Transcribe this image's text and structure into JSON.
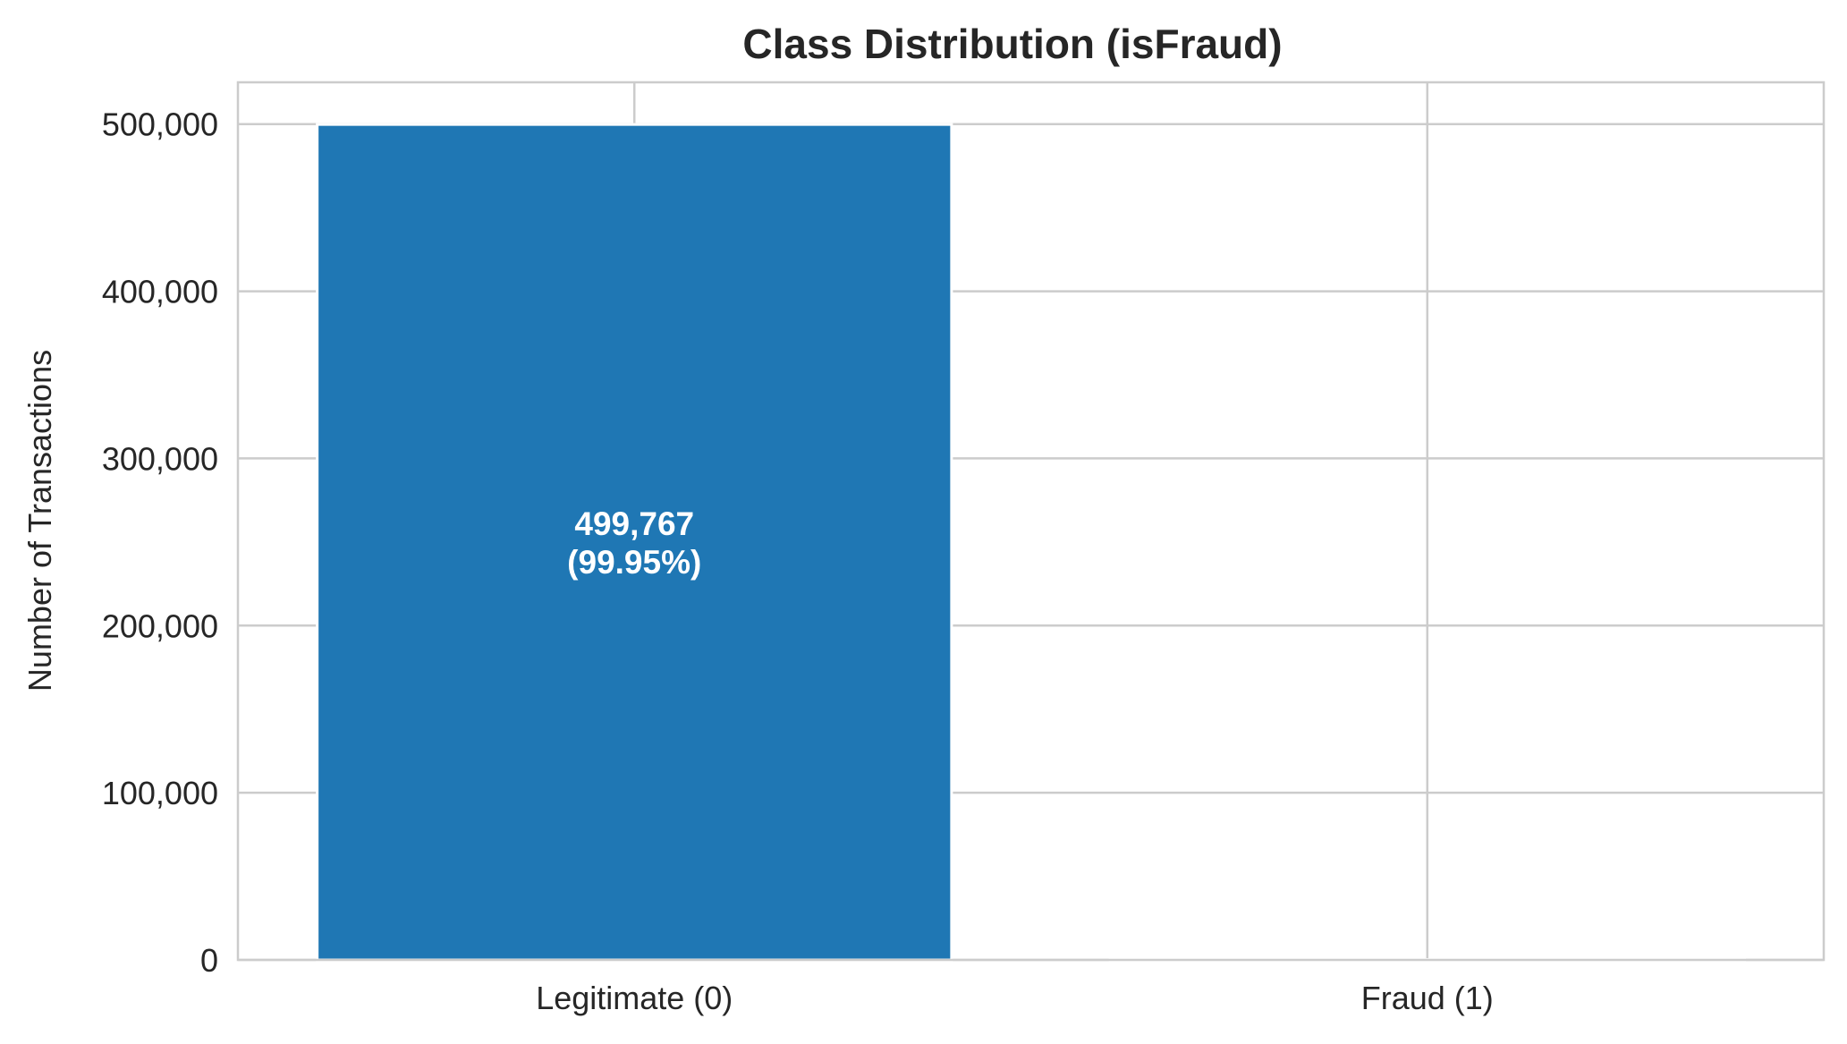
{
  "chart_data": {
    "type": "bar",
    "title": "Class Distribution (isFraud)",
    "xlabel": "",
    "ylabel": "Number of Transactions",
    "categories": [
      "Legitimate (0)",
      "Fraud (1)"
    ],
    "values": [
      499767,
      233
    ],
    "data_labels": [
      {
        "count": "499,767",
        "percent": "(99.95%)"
      },
      {
        "count": "",
        "percent": ""
      }
    ],
    "ylim": [
      0,
      525000
    ],
    "yticks": [
      0,
      100000,
      200000,
      300000,
      400000,
      500000
    ],
    "ytick_labels": [
      "0",
      "100,000",
      "200,000",
      "300,000",
      "400,000",
      "500,000"
    ],
    "grid": true,
    "colors": {
      "bar": "#1f77b4",
      "grid": "#cccccc",
      "spine": "#cccccc",
      "text": "#262626"
    }
  }
}
